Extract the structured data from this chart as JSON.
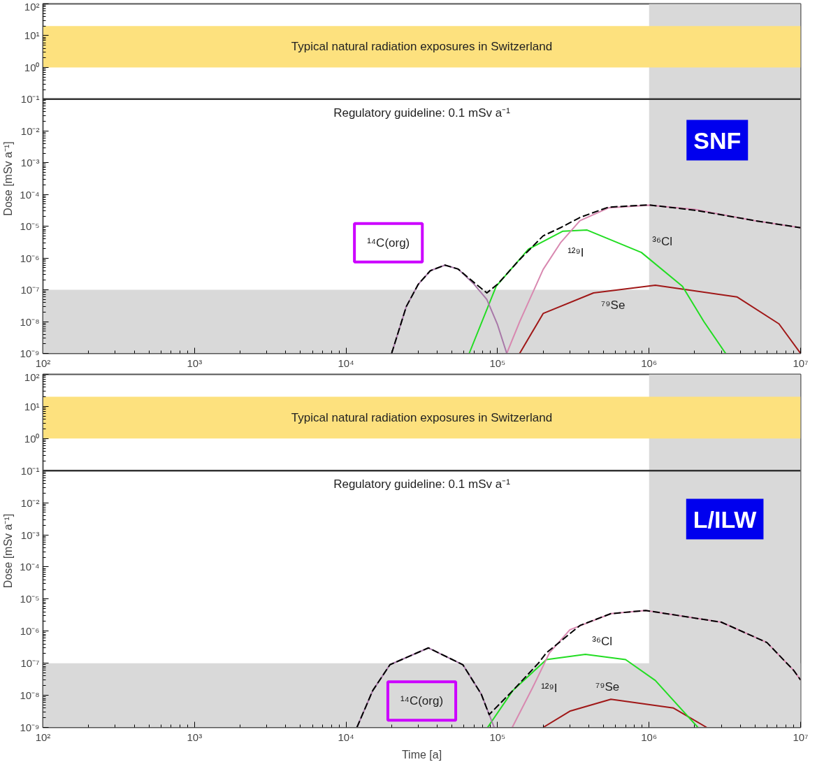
{
  "chart_data": [
    {
      "type": "line",
      "ylabel": "Dose [mSv a⁻¹]",
      "log": "xy",
      "grid": false,
      "xlim": [
        100,
        10000000
      ],
      "ylim": [
        1e-09,
        100
      ],
      "xticks": [
        {
          "value": 100,
          "label": "10²"
        },
        {
          "value": 1000,
          "label": "10³"
        },
        {
          "value": 10000,
          "label": "10⁴"
        },
        {
          "value": 100000,
          "label": "10⁵"
        },
        {
          "value": 1000000,
          "label": "10⁶"
        },
        {
          "value": 10000000,
          "label": "10⁷"
        }
      ],
      "yticks": [
        {
          "value": 1e-09,
          "label": "10⁻⁹"
        },
        {
          "value": 1e-08,
          "label": "10⁻⁸"
        },
        {
          "value": 1e-07,
          "label": "10⁻⁷"
        },
        {
          "value": 1e-06,
          "label": "10⁻⁶"
        },
        {
          "value": 1e-05,
          "label": "10⁻⁵"
        },
        {
          "value": 0.0001,
          "label": "10⁻⁴"
        },
        {
          "value": 0.001,
          "label": "10⁻³"
        },
        {
          "value": 0.01,
          "label": "10⁻²"
        },
        {
          "value": 0.1,
          "label": "10⁻¹"
        },
        {
          "value": 1,
          "label": "10⁰"
        },
        {
          "value": 10,
          "label": "10¹"
        },
        {
          "value": 100,
          "label": "10²"
        }
      ],
      "bands": [
        {
          "axis": "y",
          "from": 1e-09,
          "to": 1e-07,
          "color": "#d9d9d9"
        },
        {
          "axis": "x",
          "from": 1000000,
          "to": 10000000,
          "color": "#d9d9d9"
        },
        {
          "axis": "y",
          "from": 1,
          "to": 20,
          "label": "Typical natural radiation exposures in Switzerland",
          "color": "#fde17e"
        }
      ],
      "ref_lines": [
        {
          "axis": "y",
          "value": 0.1,
          "label": "Regulatory guideline: 0.1 mSv a⁻¹",
          "color": "#333333"
        }
      ],
      "annotations": [
        "SNF"
      ],
      "series": [
        {
          "color": "#000000",
          "line_style": "dashed",
          "x": [
            20000,
            25000,
            30000,
            36000,
            45000,
            55000,
            70000,
            85000,
            100000,
            140000,
            200000,
            260000,
            350000,
            540000,
            1000000,
            2000000,
            3000000,
            5000000,
            10000000
          ],
          "values": [
            1e-09,
            3e-08,
            1.5e-07,
            4e-07,
            6e-07,
            4.5e-07,
            1.7e-07,
            8e-08,
            1.5e-07,
            9e-07,
            5e-06,
            9e-06,
            1.9e-05,
            4e-05,
            4.7e-05,
            3.2e-05,
            2.3e-05,
            1.5e-05,
            9e-06
          ]
        },
        {
          "name": "¹⁴C(org)",
          "color": "#a878a8",
          "x": [
            20000,
            25000,
            30000,
            36000,
            45000,
            55000,
            70000,
            85000,
            100000,
            115000
          ],
          "values": [
            1e-09,
            3e-08,
            1.5e-07,
            4e-07,
            6e-07,
            4.5e-07,
            1.5e-07,
            5e-08,
            8e-09,
            1e-09
          ]
        },
        {
          "name": "¹²⁹I",
          "color": "#d888b0",
          "x": [
            115000,
            140000,
            200000,
            260000,
            350000,
            540000,
            1000000,
            2000000,
            5000000,
            10000000
          ],
          "values": [
            1e-09,
            1e-08,
            4.4e-07,
            3e-06,
            1.5e-05,
            3.8e-05,
            4.6e-05,
            3.4e-05,
            1.5e-05,
            9e-06
          ]
        },
        {
          "name": "³⁶Cl",
          "color": "#22dd22",
          "x": [
            65000,
            98000,
            160000,
            270000,
            390000,
            890000,
            1660000,
            2300000,
            3200000
          ],
          "values": [
            1e-09,
            1.3e-07,
            1.9e-06,
            7e-06,
            7.6e-06,
            1.5e-06,
            1.3e-07,
            1e-08,
            1e-09
          ]
        },
        {
          "name": "⁷⁹Se",
          "color": "#a01818",
          "x": [
            140000,
            200000,
            430000,
            1100000,
            3800000,
            7200000,
            10000000
          ],
          "values": [
            1e-09,
            1.8e-08,
            8e-08,
            1.4e-07,
            6e-08,
            8.5e-09,
            1e-09
          ]
        }
      ]
    },
    {
      "type": "line",
      "xlabel": "Time [a]",
      "ylabel": "Dose [mSv a⁻¹]",
      "log": "xy",
      "grid": false,
      "xlim": [
        100,
        10000000
      ],
      "ylim": [
        1e-09,
        100
      ],
      "xticks": [
        {
          "value": 100,
          "label": "10²"
        },
        {
          "value": 1000,
          "label": "10³"
        },
        {
          "value": 10000,
          "label": "10⁴"
        },
        {
          "value": 100000,
          "label": "10⁵"
        },
        {
          "value": 1000000,
          "label": "10⁶"
        },
        {
          "value": 10000000,
          "label": "10⁷"
        }
      ],
      "yticks": [
        {
          "value": 1e-09,
          "label": "10⁻⁹"
        },
        {
          "value": 1e-08,
          "label": "10⁻⁸"
        },
        {
          "value": 1e-07,
          "label": "10⁻⁷"
        },
        {
          "value": 1e-06,
          "label": "10⁻⁶"
        },
        {
          "value": 1e-05,
          "label": "10⁻⁵"
        },
        {
          "value": 0.0001,
          "label": "10⁻⁴"
        },
        {
          "value": 0.001,
          "label": "10⁻³"
        },
        {
          "value": 0.01,
          "label": "10⁻²"
        },
        {
          "value": 0.1,
          "label": "10⁻¹"
        },
        {
          "value": 1,
          "label": "10⁰"
        },
        {
          "value": 10,
          "label": "10¹"
        },
        {
          "value": 100,
          "label": "10²"
        }
      ],
      "bands": [
        {
          "axis": "y",
          "from": 1e-09,
          "to": 1e-07,
          "color": "#d9d9d9"
        },
        {
          "axis": "x",
          "from": 1000000,
          "to": 10000000,
          "color": "#d9d9d9"
        },
        {
          "axis": "y",
          "from": 1,
          "to": 20,
          "label": "Typical natural radiation exposures in Switzerland",
          "color": "#fde17e"
        }
      ],
      "ref_lines": [
        {
          "axis": "y",
          "value": 0.1,
          "label": "Regulatory guideline: 0.1 mSv a⁻¹",
          "color": "#333333"
        }
      ],
      "annotations": [
        "L/ILW"
      ],
      "series": [
        {
          "color": "#000000",
          "line_style": "dashed",
          "x": [
            11800,
            15000,
            19500,
            35000,
            59000,
            78000,
            88000,
            126000,
            186000,
            210000,
            350000,
            560000,
            950000,
            3000000,
            6000000,
            9000000,
            10000000
          ],
          "values": [
            1e-09,
            1.4e-08,
            9e-08,
            3e-07,
            9e-08,
            1.1e-08,
            2.5e-09,
            1.4e-08,
            1e-07,
            2.1e-07,
            1.5e-06,
            3.5e-06,
            4.4e-06,
            1.9e-06,
            4.4e-07,
            6e-08,
            3e-08
          ]
        },
        {
          "name": "¹⁴C(org)",
          "color": "#a878a8",
          "x": [
            11800,
            15000,
            19500,
            35000,
            59000,
            78000,
            95000
          ],
          "values": [
            1e-09,
            1.4e-08,
            9e-08,
            3e-07,
            9e-08,
            1.1e-08,
            1e-09
          ]
        },
        {
          "name": "¹²⁹I",
          "color": "#d888b0",
          "x": [
            125000,
            170000,
            220000,
            300000,
            560000,
            950000,
            3000000,
            6000000,
            9000000,
            10000000
          ],
          "values": [
            1e-09,
            1.7e-08,
            2.1e-07,
            1.1e-06,
            3.5e-06,
            4.4e-06,
            1.9e-06,
            4.4e-07,
            6e-08,
            3e-08
          ]
        },
        {
          "name": "³⁶Cl",
          "color": "#22dd22",
          "x": [
            86000,
            126000,
            210000,
            380000,
            700000,
            1100000,
            2100000
          ],
          "values": [
            1e-09,
            1.4e-08,
            1.3e-07,
            1.9e-07,
            1.3e-07,
            2.9e-08,
            1e-09
          ]
        },
        {
          "name": "⁷⁹Se",
          "color": "#a01818",
          "x": [
            200000,
            300000,
            560000,
            1450000,
            2400000
          ],
          "values": [
            1e-09,
            3.2e-09,
            7.5e-09,
            4e-09,
            1e-09
          ]
        }
      ]
    }
  ]
}
